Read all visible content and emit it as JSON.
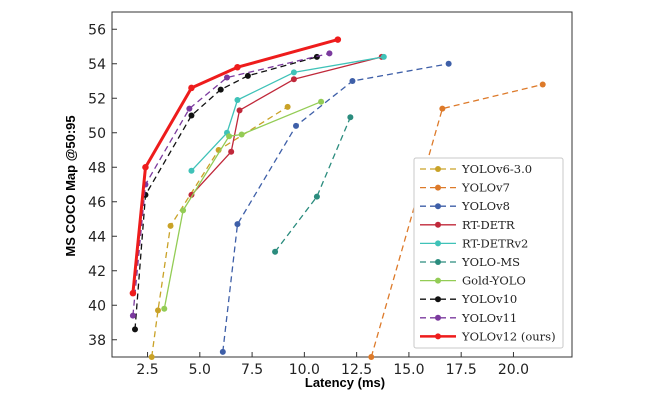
{
  "chart_data": {
    "type": "line",
    "xlabel": "Latency (ms)",
    "ylabel": "MS COCO  Map @50:95",
    "xlim": [
      0.8,
      22.8
    ],
    "ylim": [
      37.0,
      57.0
    ],
    "xticks": [
      "2.5",
      "5.0",
      "7.5",
      "10.0",
      "12.5",
      "15.0",
      "17.5",
      "20.0"
    ],
    "xtick_values": [
      2.5,
      5.0,
      7.5,
      10.0,
      12.5,
      15.0,
      17.5,
      20.0
    ],
    "yticks": [
      "38",
      "40",
      "42",
      "44",
      "46",
      "48",
      "50",
      "52",
      "54",
      "56"
    ],
    "ytick_values": [
      38,
      40,
      42,
      44,
      46,
      48,
      50,
      52,
      54,
      56
    ],
    "legend_position": "bottom-right",
    "series": [
      {
        "name": "YOLOv6-3.0",
        "color": "#c9a227",
        "dash": "dashed",
        "width": 1.3,
        "marker": 4,
        "x": [
          2.7,
          3.0,
          3.6,
          5.9,
          9.2
        ],
        "y": [
          37.0,
          39.7,
          44.6,
          49.0,
          51.5
        ]
      },
      {
        "name": "YOLOv7",
        "color": "#dd7a2a",
        "dash": "dashed",
        "width": 1.3,
        "marker": 4,
        "x": [
          13.2,
          16.6,
          21.4
        ],
        "y": [
          37.0,
          51.4,
          52.8
        ]
      },
      {
        "name": "YOLOv8",
        "color": "#3e5fa8",
        "dash": "dashed",
        "width": 1.3,
        "marker": 4,
        "x": [
          6.1,
          6.8,
          9.6,
          12.3,
          16.9
        ],
        "y": [
          37.3,
          44.7,
          50.4,
          53.0,
          54.0
        ]
      },
      {
        "name": "RT-DETR",
        "color": "#c0283a",
        "dash": "solid",
        "width": 1.3,
        "marker": 4,
        "x": [
          4.6,
          6.5,
          6.9,
          9.5,
          13.7
        ],
        "y": [
          46.4,
          48.9,
          51.3,
          53.1,
          54.4
        ]
      },
      {
        "name": "RT-DETRv2",
        "color": "#3fc2b8",
        "dash": "solid",
        "width": 1.3,
        "marker": 4,
        "x": [
          4.6,
          6.3,
          6.8,
          9.5,
          13.8
        ],
        "y": [
          47.8,
          50.0,
          51.9,
          53.5,
          54.4
        ]
      },
      {
        "name": "YOLO-MS",
        "color": "#2b8c7e",
        "dash": "dashed",
        "width": 1.3,
        "marker": 4,
        "x": [
          8.6,
          10.6,
          12.2
        ],
        "y": [
          43.1,
          46.3,
          50.9
        ]
      },
      {
        "name": "Gold-YOLO",
        "color": "#93cc55",
        "dash": "solid",
        "width": 1.3,
        "marker": 4,
        "x": [
          3.3,
          4.2,
          6.4,
          7.0,
          10.8
        ],
        "y": [
          39.8,
          45.5,
          49.8,
          49.9,
          51.8
        ]
      },
      {
        "name": "YOLOv10",
        "color": "#111111",
        "dash": "dashed",
        "width": 1.3,
        "marker": 4,
        "x": [
          1.9,
          2.4,
          4.6,
          6.0,
          7.3,
          10.6
        ],
        "y": [
          38.6,
          46.4,
          51.0,
          52.5,
          53.3,
          54.4
        ]
      },
      {
        "name": "YOLOv11",
        "color": "#7b3a9e",
        "dash": "dashed",
        "width": 1.3,
        "marker": 4,
        "x": [
          1.8,
          2.4,
          4.5,
          6.3,
          11.2
        ],
        "y": [
          39.4,
          47.0,
          51.4,
          53.2,
          54.6
        ]
      },
      {
        "name": "YOLOv12 (ours)",
        "color": "#ee1c1c",
        "dash": "solid",
        "width": 3,
        "marker": 4.5,
        "x": [
          1.8,
          2.4,
          4.6,
          6.8,
          11.6
        ],
        "y": [
          40.7,
          48.0,
          52.6,
          53.8,
          55.4
        ]
      }
    ]
  }
}
